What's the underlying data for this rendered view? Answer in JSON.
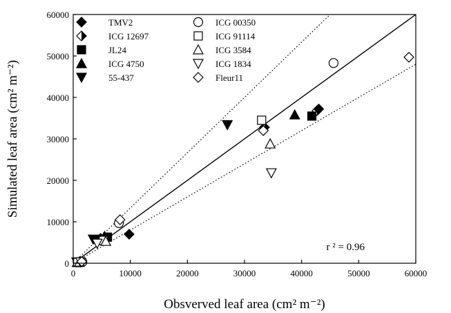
{
  "chart_data": {
    "type": "scatter",
    "xlabel": "Obsverved  leaf area (cm² m⁻²)",
    "ylabel": "Simulated  leaf area (cm² m⁻²)",
    "xlim": [
      0,
      60000
    ],
    "ylim": [
      0,
      60000
    ],
    "xticks": [
      "0",
      "10000",
      "20000",
      "30000",
      "40000",
      "50000",
      "60000"
    ],
    "yticks": [
      "0",
      "10000",
      "20000",
      "30000",
      "40000",
      "50000",
      "60000"
    ],
    "annotation": "r ² = 0.96",
    "legend_position": "top-left",
    "lines": [
      {
        "style": "solid",
        "x": [
          0,
          60000
        ],
        "y": [
          0,
          60000
        ]
      },
      {
        "style": "dotted",
        "x": [
          0,
          45000
        ],
        "y": [
          0,
          60000
        ]
      },
      {
        "style": "dotted",
        "x": [
          0,
          60000
        ],
        "y": [
          0,
          48000
        ]
      }
    ],
    "series": [
      {
        "name": "TMV2",
        "marker": "diamond-filled",
        "points": [
          [
            1000,
            300
          ],
          [
            9800,
            7000
          ],
          [
            43000,
            37200
          ],
          [
            4800,
            6000
          ]
        ]
      },
      {
        "name": "ICG 12697",
        "marker": "diamond-half",
        "points": [
          [
            1200,
            400
          ],
          [
            33500,
            32800
          ],
          [
            42700,
            36800
          ]
        ]
      },
      {
        "name": "JL24",
        "marker": "square-filled",
        "points": [
          [
            900,
            200
          ],
          [
            6000,
            6300
          ],
          [
            41800,
            35500
          ]
        ]
      },
      {
        "name": "ICG 4750",
        "marker": "triangle-up-filled",
        "points": [
          [
            700,
            200
          ],
          [
            38800,
            35800
          ],
          [
            5500,
            6500
          ]
        ]
      },
      {
        "name": "55-437",
        "marker": "triangle-down-filled",
        "points": [
          [
            600,
            300
          ],
          [
            3500,
            5800
          ],
          [
            27000,
            33400
          ]
        ]
      },
      {
        "name": "ICG 00350",
        "marker": "circle-open",
        "points": [
          [
            1600,
            300
          ],
          [
            8000,
            9700
          ],
          [
            45600,
            48300
          ]
        ]
      },
      {
        "name": "ICG 91114",
        "marker": "square-open",
        "points": [
          [
            800,
            200
          ],
          [
            5300,
            5500
          ],
          [
            33000,
            34500
          ]
        ]
      },
      {
        "name": "ICG 3584",
        "marker": "triangle-up-open",
        "points": [
          [
            1100,
            300
          ],
          [
            5700,
            5300
          ],
          [
            34500,
            28800
          ]
        ]
      },
      {
        "name": "ICG 1834",
        "marker": "triangle-down-open",
        "points": [
          [
            1300,
            300
          ],
          [
            4200,
            4800
          ],
          [
            34700,
            21800
          ]
        ]
      },
      {
        "name": "Fleur11",
        "marker": "diamond-open",
        "points": [
          [
            1500,
            400
          ],
          [
            8200,
            10500
          ],
          [
            33300,
            32000
          ],
          [
            58800,
            49700
          ]
        ]
      }
    ]
  }
}
